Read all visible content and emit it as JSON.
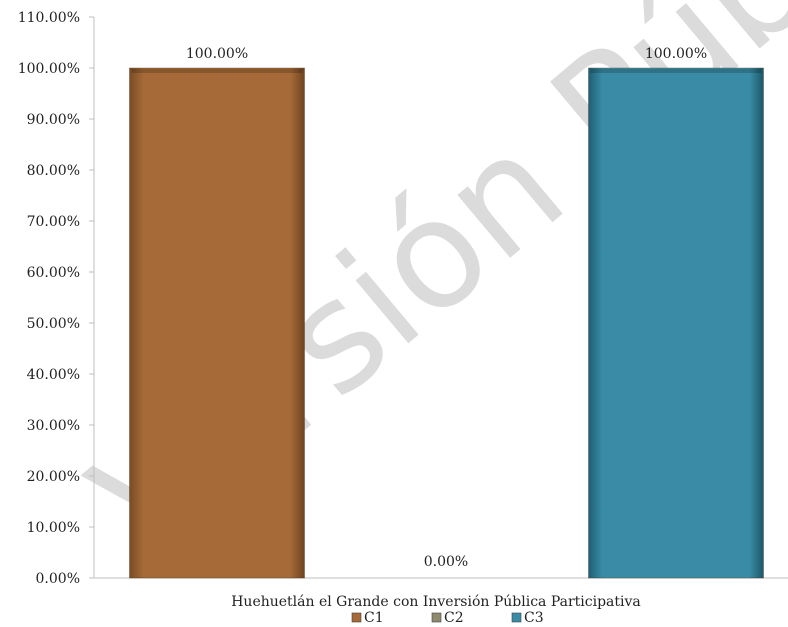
{
  "watermark": "Versión Pública",
  "chart_data": {
    "type": "bar",
    "title": "",
    "xlabel": "Huehuetlán el Grande con Inversión Pública Participativa",
    "ylabel": "",
    "categories": [
      "Huehuetlán el Grande con Inversión Pública Participativa"
    ],
    "series": [
      {
        "name": "C1",
        "values": [
          100.0
        ],
        "color": "#A56A37"
      },
      {
        "name": "C2",
        "values": [
          0.0
        ],
        "color": "#8E8A6E"
      },
      {
        "name": "C3",
        "values": [
          100.0
        ],
        "color": "#3A8CA6"
      }
    ],
    "data_labels": [
      "100.00%",
      "0.00%",
      "100.00%"
    ],
    "ylim": [
      0,
      110
    ],
    "yticks": [
      "0.00%",
      "10.00%",
      "20.00%",
      "30.00%",
      "40.00%",
      "50.00%",
      "60.00%",
      "70.00%",
      "80.00%",
      "90.00%",
      "100.00%",
      "110.00%"
    ],
    "grid": false,
    "legend_position": "bottom"
  }
}
